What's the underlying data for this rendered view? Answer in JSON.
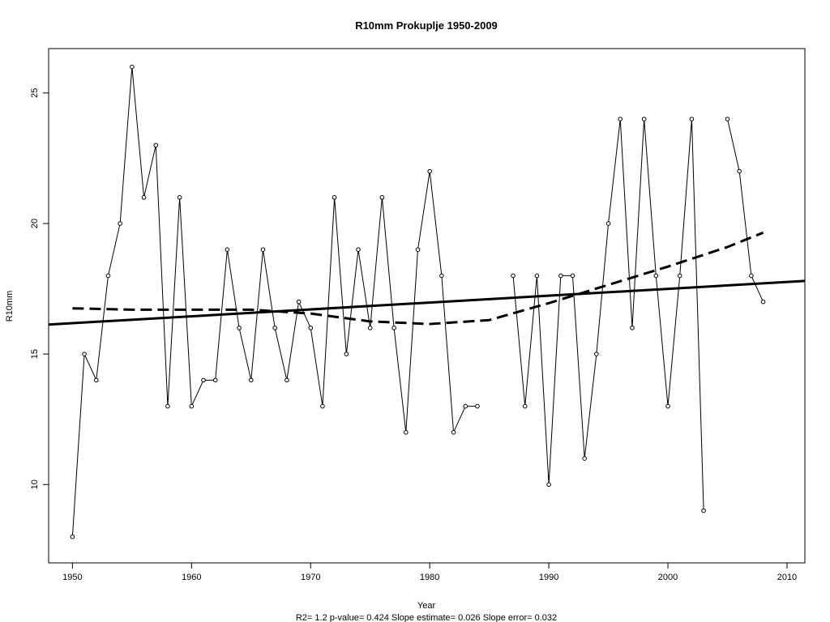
{
  "chart_data": {
    "type": "line",
    "title": "R10mm   Prokuplje 1950-2009",
    "xlabel": "Year",
    "ylabel": "R10mm",
    "footer": "R2= 1.2  p-value= 0.424  Slope estimate= 0.026  Slope error= 0.032",
    "xlim": [
      1948,
      2011.5
    ],
    "ylim": [
      7,
      26.7
    ],
    "x_ticks": [
      1950,
      1960,
      1970,
      1980,
      1990,
      2000,
      2010
    ],
    "y_ticks": [
      10,
      15,
      20,
      25
    ],
    "grid": false,
    "legend": "none",
    "series": [
      {
        "style": "line-with-points",
        "color": "#000000",
        "segments": [
          {
            "x": [
              1950,
              1951,
              1952,
              1953,
              1954,
              1955,
              1956,
              1957,
              1958,
              1959,
              1960,
              1961,
              1962,
              1963,
              1964,
              1965,
              1966,
              1967,
              1968,
              1969,
              1970,
              1971,
              1972,
              1973,
              1974,
              1975,
              1976,
              1977,
              1978,
              1979,
              1980,
              1981,
              1982,
              1983,
              1984
            ],
            "y": [
              8,
              15,
              14,
              18,
              20,
              26,
              21,
              23,
              13,
              21,
              13,
              14,
              14,
              19,
              16,
              14,
              19,
              16,
              14,
              17,
              16,
              13,
              21,
              15,
              19,
              16,
              21,
              16,
              12,
              19,
              22,
              18,
              12,
              13,
              13
            ]
          },
          {
            "x": [
              1987,
              1988,
              1989,
              1990,
              1991,
              1992,
              1993,
              1994,
              1995,
              1996,
              1997,
              1998,
              1999,
              2000,
              2001,
              2002,
              2003
            ],
            "y": [
              18,
              13,
              18,
              10,
              18,
              18,
              11,
              15,
              20,
              24,
              16,
              24,
              18,
              13,
              18,
              24,
              9
            ]
          },
          {
            "x": [
              2005,
              2006,
              2007,
              2008
            ],
            "y": [
              24,
              22,
              18,
              17
            ]
          }
        ]
      },
      {
        "style": "solid-thick",
        "color": "#000000",
        "x": [
          1948,
          2011.5
        ],
        "y": [
          16.13,
          17.8
        ]
      },
      {
        "style": "dashed-thick",
        "color": "#000000",
        "x": [
          1950,
          1955,
          1960,
          1965,
          1970,
          1975,
          1980,
          1985,
          1990,
          1995,
          2000,
          2005,
          2008
        ],
        "y": [
          16.75,
          16.7,
          16.7,
          16.7,
          16.55,
          16.25,
          16.15,
          16.3,
          16.95,
          17.65,
          18.35,
          19.1,
          19.65
        ]
      }
    ]
  }
}
